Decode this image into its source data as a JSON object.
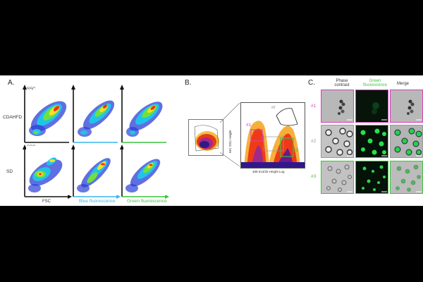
{
  "panels": {
    "a": {
      "letter": "A.",
      "ssc_label": "SSC",
      "fsc_label": "FSC",
      "row_labels": [
        "CDAHFD",
        "SD"
      ],
      "column_labels": [
        "Blue fluorescence",
        "Green fluorescence"
      ],
      "colors": {
        "blue_label": "#38b6e8",
        "green_label": "#3cc43c",
        "axis_blue": "#38b6e8",
        "axis_green": "#3cc43c"
      }
    },
    "b": {
      "letter": "B.",
      "y_axis_label": "561 SSC Height",
      "x_axis_label": "488 513/26 Height Log",
      "gates": [
        "#1",
        "#2",
        "#3"
      ],
      "gate_colors": {
        "g1": "#d63fb8",
        "g2": "#888888",
        "g3": "#3cc43c"
      }
    },
    "c": {
      "letter": "C.",
      "columns": [
        "Phase contrast",
        "Green fluorescence",
        "Merge"
      ],
      "rows": [
        "#1",
        "#2",
        "#3"
      ],
      "row_colors": [
        "#d63fb8",
        "#999999",
        "#3cc43c"
      ],
      "green_label_color": "#3cc43c"
    }
  }
}
